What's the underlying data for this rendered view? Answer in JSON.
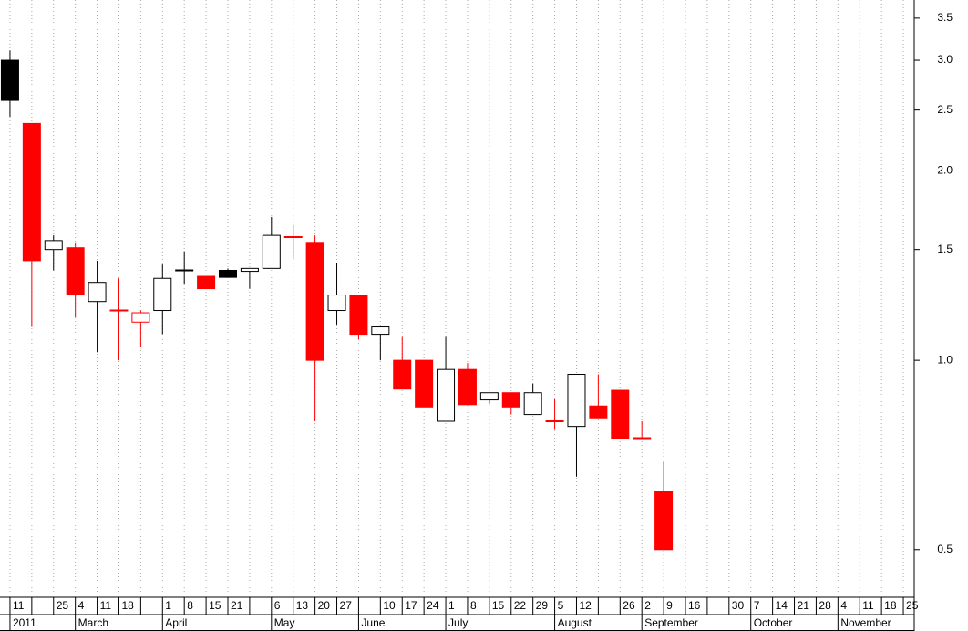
{
  "chart_data": {
    "type": "candlestick",
    "categories": [
      "11",
      null,
      "25",
      "4",
      "11",
      "18",
      null,
      "1",
      "8",
      "15",
      "21",
      null,
      "6",
      "13",
      "20",
      "27",
      null,
      "10",
      "17",
      "24",
      "1",
      "8",
      "15",
      "22",
      "29",
      "5",
      "12",
      null,
      "26",
      "2",
      "9",
      "16",
      null,
      "30",
      "7",
      "14",
      "21",
      "28",
      "4",
      "11",
      "18",
      "25"
    ],
    "period_labels": [
      "2011",
      null,
      null,
      "March",
      null,
      null,
      null,
      "April",
      null,
      null,
      null,
      null,
      "May",
      null,
      null,
      null,
      "June",
      null,
      null,
      null,
      "July",
      null,
      null,
      null,
      null,
      "August",
      null,
      null,
      null,
      "September",
      null,
      null,
      null,
      null,
      "October",
      null,
      null,
      null,
      "November",
      null,
      null,
      null
    ],
    "open": [
      3.0,
      2.38,
      1.5,
      1.51,
      1.24,
      1.2,
      1.15,
      1.2,
      1.39,
      1.36,
      1.39,
      1.385,
      1.4,
      1.57,
      1.54,
      1.2,
      1.27,
      1.1,
      1.0,
      1.0,
      0.8,
      0.967,
      0.865,
      0.888,
      0.82,
      0.8,
      0.785,
      0.846,
      0.896,
      0.752,
      0.619,
      null,
      null,
      null,
      null,
      null,
      null,
      null,
      null,
      null,
      null,
      null
    ],
    "high": [
      3.11,
      2.38,
      1.58,
      1.54,
      1.44,
      1.35,
      1.2,
      1.42,
      1.49,
      1.36,
      1.4,
      1.4,
      1.69,
      1.64,
      1.58,
      1.43,
      1.27,
      1.13,
      1.09,
      1.0,
      1.09,
      0.99,
      0.888,
      0.888,
      0.918,
      0.868,
      0.95,
      0.95,
      0.896,
      0.8,
      0.69,
      null,
      null,
      null,
      null,
      null,
      null,
      null,
      null,
      null,
      null,
      null
    ],
    "low": [
      2.44,
      1.13,
      1.39,
      1.17,
      1.03,
      1.0,
      1.05,
      1.1,
      1.32,
      1.3,
      1.355,
      1.3,
      1.4,
      1.45,
      0.8,
      1.14,
      1.08,
      1.0,
      0.9,
      0.843,
      0.8,
      0.85,
      0.853,
      0.82,
      0.82,
      0.775,
      0.653,
      0.81,
      0.752,
      0.752,
      0.5,
      null,
      null,
      null,
      null,
      null,
      null,
      null,
      null,
      null,
      null,
      null
    ],
    "close": [
      2.59,
      1.44,
      1.55,
      1.27,
      1.33,
      1.2,
      1.19,
      1.35,
      1.39,
      1.3,
      1.355,
      1.4,
      1.58,
      1.57,
      1.0,
      1.27,
      1.1,
      1.13,
      0.9,
      0.843,
      0.967,
      0.85,
      0.888,
      0.843,
      0.888,
      0.8,
      0.95,
      0.81,
      0.752,
      0.752,
      0.5,
      null,
      null,
      null,
      null,
      null,
      null,
      null,
      null,
      null,
      null,
      null
    ],
    "colors": [
      "black",
      "red",
      "black",
      "red",
      "black",
      "red",
      "red",
      "black",
      "black",
      "red",
      "black",
      "black",
      "black",
      "red",
      "red",
      "black",
      "red",
      "black",
      "red",
      "red",
      "black",
      "red",
      "black",
      "red",
      "black",
      "red",
      "black",
      "red",
      "red",
      "red",
      "red",
      null,
      null,
      null,
      null,
      null,
      null,
      null,
      null,
      null,
      null,
      null
    ],
    "ylim": [
      0.42,
      3.74
    ],
    "yticks": [
      0.5,
      {
        "value": 1.0,
        "label": "1.0"
      },
      1.5,
      {
        "value": 2.0,
        "label": "2.0"
      },
      2.5,
      {
        "value": 3.0,
        "label": "3.0"
      },
      3.5
    ],
    "log_scale": true,
    "grid": "x"
  }
}
